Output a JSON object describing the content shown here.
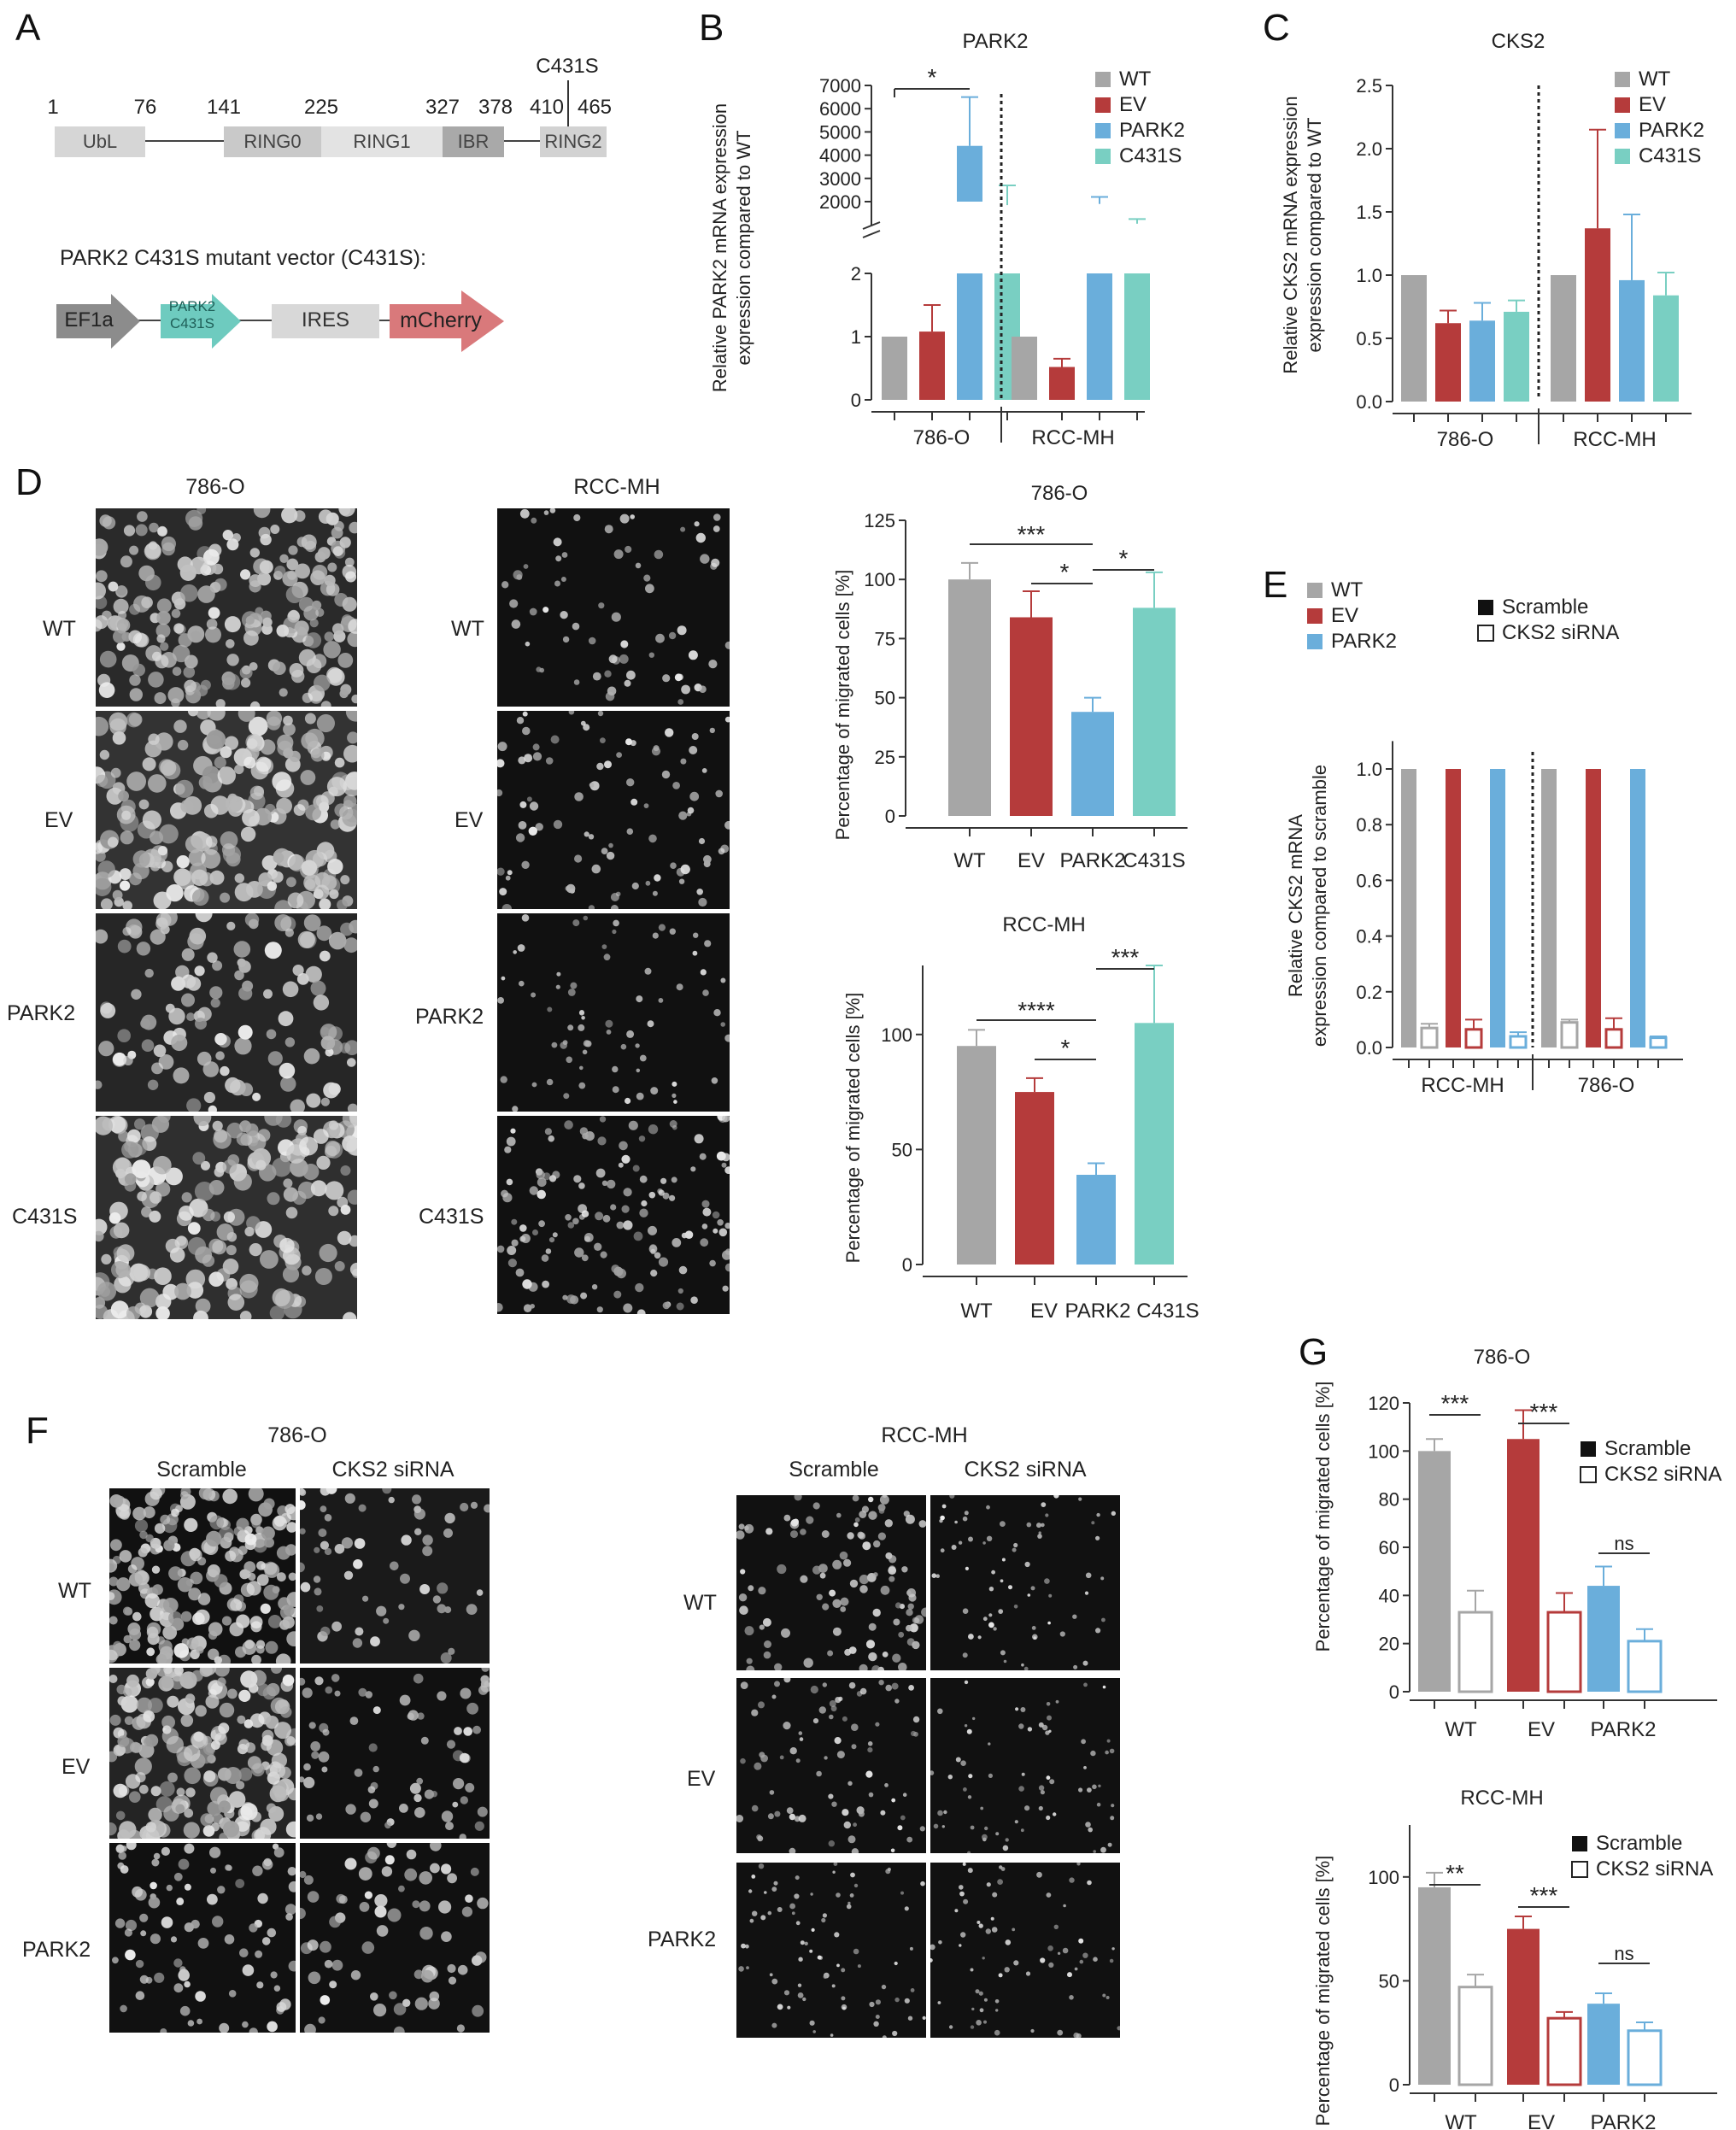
{
  "panel_letters": [
    "A",
    "B",
    "C",
    "D",
    "E",
    "F",
    "G"
  ],
  "colors": {
    "WT": "#a6a6a6",
    "EV": "#b53b3b",
    "PARK2": "#6aaedb",
    "C431S": "#79cfc2",
    "mCherry": "#d9797b",
    "vector_teal": "#6ecbbf",
    "box_gray": "#d8d8d8"
  },
  "panel_A": {
    "positions": [
      "1",
      "76",
      "141",
      "225",
      "327",
      "378",
      "410",
      "465"
    ],
    "mutation_label": "C431S",
    "domains": [
      "UbL",
      "RING0",
      "RING1",
      "IBR",
      "RING2"
    ],
    "vector_title": "PARK2 C431S mutant vector (C431S):",
    "vector_elements": [
      "EF1a",
      "PARK2 C431S",
      "IRES",
      "mCherry"
    ]
  },
  "panel_D_images": {
    "col_titles": [
      "786-O",
      "RCC-MH"
    ],
    "row_labels": [
      "WT",
      "EV",
      "PARK2",
      "C431S"
    ]
  },
  "panel_F_images": {
    "group_titles": [
      "786-O",
      "RCC-MH"
    ],
    "col_titles": [
      "Scramble",
      "CKS2 siRNA"
    ],
    "row_labels": [
      "WT",
      "EV",
      "PARK2"
    ]
  },
  "chart_data": [
    {
      "id": "B",
      "type": "bar",
      "title": "PARK2",
      "ylabel": "Relative PARK2 mRNA expression compared to WT",
      "groups": [
        "786-O",
        "RCC-MH"
      ],
      "series_names": [
        "WT",
        "EV",
        "PARK2",
        "C431S"
      ],
      "values": {
        "786-O": [
          1,
          1.08,
          4400,
          1850
        ],
        "RCC-MH": [
          1,
          0.52,
          1900,
          1050
        ]
      },
      "errors": {
        "786-O": [
          0,
          0.42,
          2100,
          850
        ],
        "RCC-MH": [
          0,
          0.13,
          300,
          200
        ]
      },
      "broken_axis": true,
      "yticks_lower": [
        "0",
        "1",
        "2"
      ],
      "yticks_upper": [
        "2000",
        "3000",
        "4000",
        "5000",
        "6000",
        "7000"
      ],
      "significance": [
        {
          "between": "WT-PARK2 (786-O)",
          "label": "*"
        }
      ],
      "legend_position": "top-right"
    },
    {
      "id": "C",
      "type": "bar",
      "title": "CKS2",
      "ylabel": "Relative CKS2 mRNA expression compared to WT",
      "groups": [
        "786-O",
        "RCC-MH"
      ],
      "series_names": [
        "WT",
        "EV",
        "PARK2",
        "C431S"
      ],
      "values": {
        "786-O": [
          1,
          0.62,
          0.64,
          0.71
        ],
        "RCC-MH": [
          1,
          1.37,
          0.96,
          0.84
        ]
      },
      "errors": {
        "786-O": [
          0,
          0.1,
          0.14,
          0.09
        ],
        "RCC-MH": [
          0,
          0.78,
          0.52,
          0.18
        ]
      },
      "ylim": [
        0,
        2.5
      ],
      "yticks": [
        "0.0",
        "0.5",
        "1.0",
        "1.5",
        "2.0",
        "2.5"
      ],
      "legend_position": "top-right"
    },
    {
      "id": "D1",
      "type": "bar",
      "title": "786-O",
      "ylabel": "Percentage of migrated cells [%]",
      "categories": [
        "WT",
        "EV",
        "PARK2",
        "C431S"
      ],
      "values": [
        100,
        84,
        44,
        88
      ],
      "errors": [
        7,
        11,
        6,
        15
      ],
      "ylim": [
        0,
        125
      ],
      "yticks": [
        "0",
        "25",
        "50",
        "75",
        "100",
        "125"
      ],
      "significance": [
        {
          "from": "WT",
          "to": "PARK2",
          "label": "***"
        },
        {
          "from": "EV",
          "to": "PARK2",
          "label": "*"
        },
        {
          "from": "PARK2",
          "to": "C431S",
          "label": "*"
        }
      ]
    },
    {
      "id": "D2",
      "type": "bar",
      "title": "RCC-MH",
      "ylabel": "Percentage of migrated cells [%]",
      "categories": [
        "WT",
        "EV",
        "PARK2",
        "C431S"
      ],
      "values": [
        95,
        75,
        39,
        105
      ],
      "errors": [
        7,
        6,
        5,
        25
      ],
      "ylim": [
        0,
        130
      ],
      "yticks": [
        "0",
        "50",
        "100"
      ],
      "significance": [
        {
          "from": "WT",
          "to": "PARK2",
          "label": "****"
        },
        {
          "from": "EV",
          "to": "PARK2",
          "label": "*"
        },
        {
          "from": "PARK2",
          "to": "C431S",
          "label": "***"
        }
      ]
    },
    {
      "id": "E",
      "type": "bar",
      "ylabel": "Relative CKS2 mRNA expression compared to scramble",
      "groups": [
        "RCC-MH",
        "786-O"
      ],
      "series_names": [
        "WT",
        "EV",
        "PARK2"
      ],
      "legend_fill": [
        "Scramble",
        "CKS2 siRNA"
      ],
      "values": {
        "RCC-MH": {
          "scramble": [
            1,
            1,
            1
          ],
          "sirna": [
            0.07,
            0.065,
            0.04
          ]
        },
        "786-O": {
          "scramble": [
            1,
            1,
            1
          ],
          "sirna": [
            0.09,
            0.065,
            0.035
          ]
        }
      },
      "errors": {
        "RCC-MH": {
          "scramble": [
            0,
            0,
            0
          ],
          "sirna": [
            0.015,
            0.035,
            0.015
          ]
        },
        "786-O": {
          "scramble": [
            0,
            0,
            0
          ],
          "sirna": [
            0.01,
            0.04,
            0.005
          ]
        }
      },
      "ylim": [
        0,
        1.1
      ],
      "yticks": [
        "0.0",
        "0.2",
        "0.4",
        "0.6",
        "0.8",
        "1.0"
      ],
      "legend_position": "top"
    },
    {
      "id": "G1",
      "type": "bar",
      "title": "786-O",
      "ylabel": "Percentage of migrated cells [%]",
      "categories": [
        "WT",
        "EV",
        "PARK2"
      ],
      "legend_fill": [
        "Scramble",
        "CKS2 siRNA"
      ],
      "scramble": [
        100,
        105,
        44
      ],
      "sirna": [
        33,
        33,
        21
      ],
      "scramble_err": [
        5,
        12,
        8
      ],
      "sirna_err": [
        9,
        8,
        5
      ],
      "ylim": [
        0,
        120
      ],
      "yticks": [
        "0",
        "20",
        "40",
        "60",
        "80",
        "100",
        "120"
      ],
      "significance": [
        "***",
        "***",
        "ns"
      ]
    },
    {
      "id": "G2",
      "type": "bar",
      "title": "RCC-MH",
      "ylabel": "Percentage of migrated cells [%]",
      "categories": [
        "WT",
        "EV",
        "PARK2"
      ],
      "legend_fill": [
        "Scramble",
        "CKS2 siRNA"
      ],
      "scramble": [
        95,
        75,
        39
      ],
      "sirna": [
        47,
        32,
        26
      ],
      "scramble_err": [
        7,
        6,
        5
      ],
      "sirna_err": [
        6,
        3,
        4
      ],
      "ylim": [
        0,
        125
      ],
      "yticks": [
        "0",
        "50",
        "100"
      ],
      "significance": [
        "**",
        "***",
        "ns"
      ]
    }
  ]
}
